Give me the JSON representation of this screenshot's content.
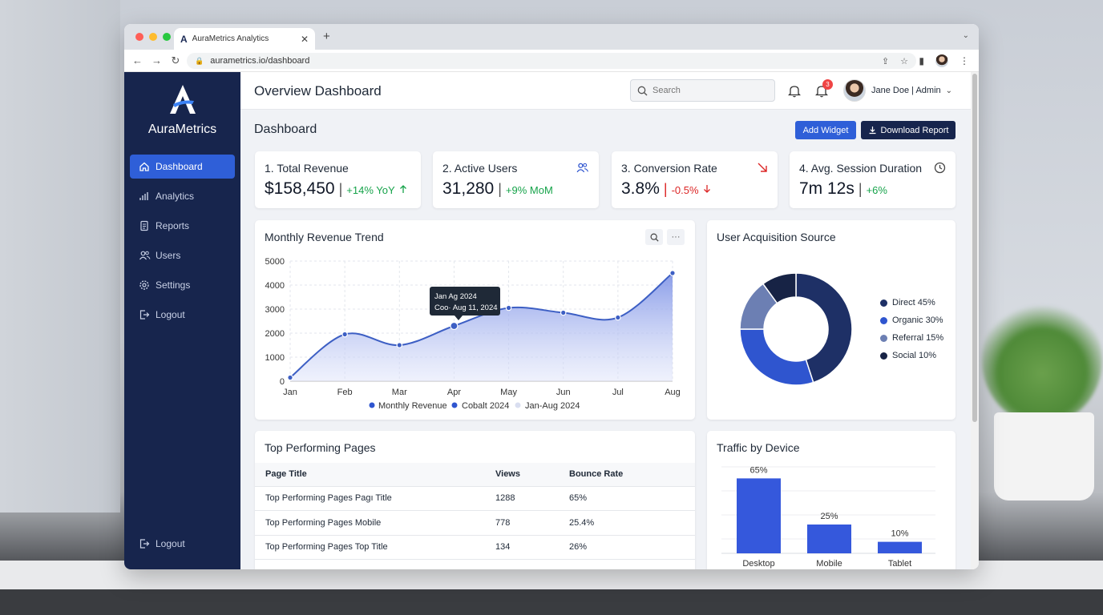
{
  "browser": {
    "tab_title": "AuraMetrics Analytics",
    "url": "aurametrics.io/dashboard"
  },
  "sidebar": {
    "brand": "AuraMetrics",
    "items": [
      {
        "label": "Dashboard",
        "icon": "home-icon",
        "active": true
      },
      {
        "label": "Analytics",
        "icon": "bar-chart-icon"
      },
      {
        "label": "Reports",
        "icon": "document-icon"
      },
      {
        "label": "Users",
        "icon": "users-icon"
      },
      {
        "label": "Settings",
        "icon": "gear-icon"
      },
      {
        "label": "Logout",
        "icon": "logout-icon"
      }
    ],
    "bottom_logout": "Logout"
  },
  "header": {
    "title": "Overview Dashboard",
    "search_placeholder": "Search",
    "notification_count": "3",
    "user": "Jane Doe | Admin"
  },
  "dashboard": {
    "heading": "Dashboard",
    "add_widget": "Add Widget",
    "download_report": "Download Report"
  },
  "kpis": [
    {
      "label": "1.  Total Revenue",
      "value": "$158,450",
      "delta": "+14% YoY",
      "trend": "up",
      "icon": "arrow-up-icon"
    },
    {
      "label": "2.  Active Users",
      "value": "31,280",
      "delta": "+9% MoM",
      "trend": "up",
      "icon": "users-icon"
    },
    {
      "label": "3.  Conversion Rate",
      "value": "3.8%",
      "delta": "-0.5%",
      "trend": "down",
      "icon": "arrow-down-right-icon"
    },
    {
      "label": "4.  Avg. Session Duration",
      "value": "7m 12s",
      "delta": "+6%",
      "trend": "up",
      "icon": "clock-icon"
    }
  ],
  "revenue_chart": {
    "title": "Monthly Revenue Trend",
    "tooltip_line1": "Jan Ag 2024",
    "tooltip_line2": "Coo· Aug 11, 2024",
    "legend": [
      "Monthly Revenue",
      "Cobalt 2024",
      "Jan-Aug 2024"
    ]
  },
  "acquisition": {
    "title": "User Acquisition Source",
    "legend": [
      "Direct 45%",
      "Organic 30%",
      "Referral 15%",
      "Social 10%"
    ]
  },
  "top_pages": {
    "title": "Top Performing Pages",
    "columns": [
      "Page Title",
      "Views",
      "Bounce Rate"
    ],
    "rows": [
      [
        "Top Performing Pages Pagı Title",
        "1288",
        "65%"
      ],
      [
        "Top Performing Pages Mobile",
        "778",
        "25.4%"
      ],
      [
        "Top Performing Pages Top Title",
        "134",
        "26%"
      ]
    ]
  },
  "device": {
    "title": "Traffic by Device"
  },
  "chart_data": [
    {
      "type": "area",
      "title": "Monthly Revenue Trend",
      "categories": [
        "Jan",
        "Feb",
        "Mar",
        "Apr",
        "May",
        "Jun",
        "Jul",
        "Aug"
      ],
      "series": [
        {
          "name": "Monthly Revenue",
          "values": [
            150,
            1950,
            1500,
            2300,
            3050,
            2850,
            2650,
            4500
          ]
        }
      ],
      "ylim": [
        0,
        5000
      ],
      "yticks": [
        0,
        1000,
        2000,
        3000,
        4000,
        5000
      ],
      "grid": true,
      "legend": "bottom",
      "colors": {
        "line": "#3d5fc4",
        "fill": "#8fa3ea"
      }
    },
    {
      "type": "pie",
      "title": "User Acquisition Source",
      "categories": [
        "Direct",
        "Organic",
        "Referral",
        "Social"
      ],
      "values": [
        45,
        30,
        15,
        10
      ],
      "colors": [
        "#1e3066",
        "#2f55cf",
        "#6c7fb3",
        "#172345"
      ],
      "legend": "right"
    },
    {
      "type": "bar",
      "title": "Traffic by Device",
      "categories": [
        "Desktop",
        "Mobile",
        "Tablet"
      ],
      "values": [
        65,
        25,
        10
      ],
      "labels": [
        "65%",
        "25%",
        "10%"
      ],
      "ylim": [
        0,
        75
      ],
      "color": "#3558dc"
    }
  ]
}
